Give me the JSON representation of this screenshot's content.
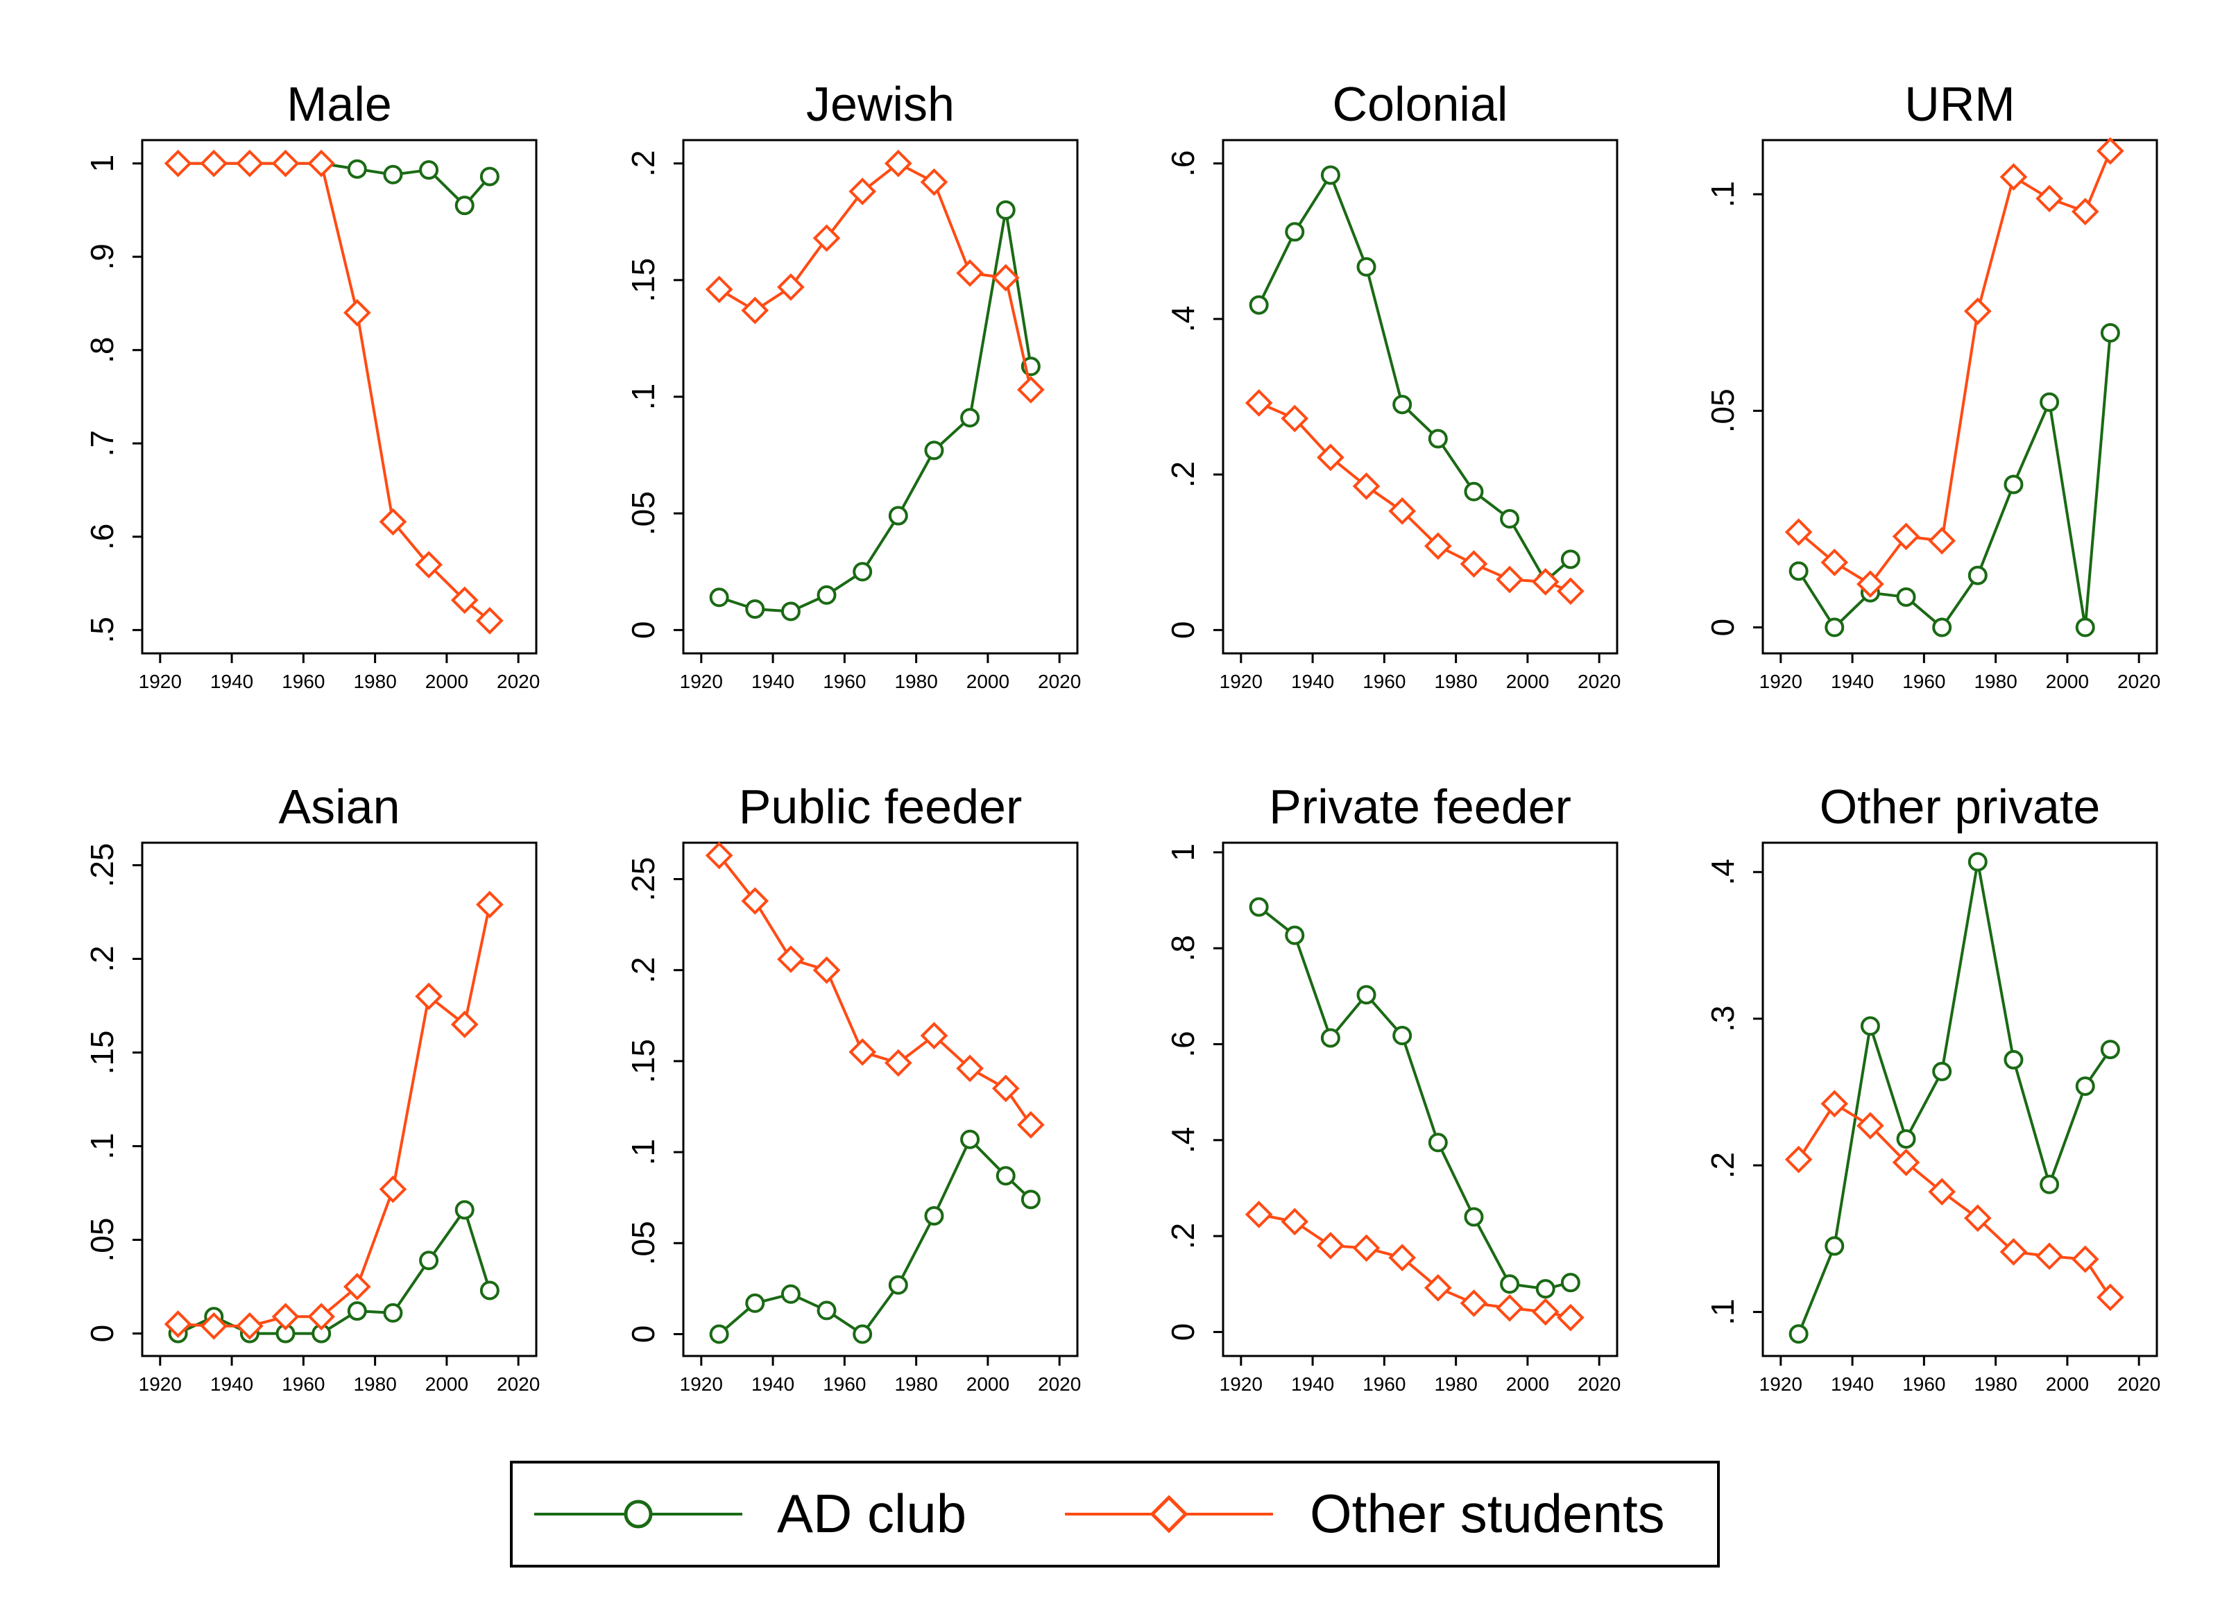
{
  "colors": {
    "ad_club": "#1a6a14",
    "other_students": "#ff4b14"
  },
  "legend": {
    "ad_label": "AD club",
    "other_label": "Other students"
  },
  "chart_data": [
    {
      "type": "line",
      "title": "Male",
      "x": [
        1925,
        1935,
        1945,
        1955,
        1965,
        1975,
        1985,
        1995,
        2005,
        2012
      ],
      "xlim": [
        1915,
        2025
      ],
      "xticks": [
        "1920",
        "1940",
        "1960",
        "1980",
        "2000",
        "2020"
      ],
      "ylim": [
        0.475,
        1.025
      ],
      "yticks": [
        {
          "v": 0.5,
          "label": ".5"
        },
        {
          "v": 0.6,
          "label": ".6"
        },
        {
          "v": 0.7,
          "label": ".7"
        },
        {
          "v": 0.8,
          "label": ".8"
        },
        {
          "v": 0.9,
          "label": ".9"
        },
        {
          "v": 1,
          "label": "1"
        }
      ],
      "series": [
        {
          "name": "AD club",
          "values": [
            1,
            1,
            1,
            1,
            1,
            0.994,
            0.988,
            0.993,
            0.955,
            0.986
          ]
        },
        {
          "name": "Other students",
          "values": [
            1,
            1,
            1,
            1,
            1,
            0.84,
            0.616,
            0.57,
            0.532,
            0.51
          ]
        }
      ]
    },
    {
      "type": "line",
      "title": "Jewish",
      "x": [
        1925,
        1935,
        1945,
        1955,
        1965,
        1975,
        1985,
        1995,
        2005,
        2012
      ],
      "xlim": [
        1915,
        2025
      ],
      "xticks": [
        "1920",
        "1940",
        "1960",
        "1980",
        "2000",
        "2020"
      ],
      "ylim": [
        -0.01,
        0.21
      ],
      "yticks": [
        {
          "v": 0,
          "label": "0"
        },
        {
          "v": 0.05,
          "label": ".05"
        },
        {
          "v": 0.1,
          "label": ".1"
        },
        {
          "v": 0.15,
          "label": ".15"
        },
        {
          "v": 0.2,
          "label": ".2"
        }
      ],
      "series": [
        {
          "name": "AD club",
          "values": [
            0.014,
            0.009,
            0.008,
            0.015,
            0.025,
            0.049,
            0.077,
            0.091,
            0.18,
            0.113
          ]
        },
        {
          "name": "Other students",
          "values": [
            0.146,
            0.137,
            0.147,
            0.168,
            0.188,
            0.2,
            0.192,
            0.153,
            0.151,
            0.103
          ]
        }
      ]
    },
    {
      "type": "line",
      "title": "Colonial",
      "x": [
        1925,
        1935,
        1945,
        1955,
        1965,
        1975,
        1985,
        1995,
        2005,
        2012
      ],
      "xlim": [
        1915,
        2025
      ],
      "xticks": [
        "1920",
        "1940",
        "1960",
        "1980",
        "2000",
        "2020"
      ],
      "ylim": [
        -0.03,
        0.63
      ],
      "yticks": [
        {
          "v": 0,
          "label": "0"
        },
        {
          "v": 0.2,
          "label": ".2"
        },
        {
          "v": 0.4,
          "label": ".4"
        },
        {
          "v": 0.6,
          "label": ".6"
        }
      ],
      "series": [
        {
          "name": "AD club",
          "values": [
            0.418,
            0.512,
            0.585,
            0.467,
            0.29,
            0.246,
            0.178,
            0.143,
            0.063,
            0.091
          ]
        },
        {
          "name": "Other students",
          "values": [
            0.292,
            0.272,
            0.222,
            0.185,
            0.153,
            0.108,
            0.085,
            0.065,
            0.062,
            0.05
          ]
        }
      ]
    },
    {
      "type": "line",
      "title": "URM",
      "x": [
        1925,
        1935,
        1945,
        1955,
        1965,
        1975,
        1985,
        1995,
        2005,
        2012
      ],
      "xlim": [
        1915,
        2025
      ],
      "xticks": [
        "1920",
        "1940",
        "1960",
        "1980",
        "2000",
        "2020"
      ],
      "ylim": [
        -0.006,
        0.1125
      ],
      "yticks": [
        {
          "v": 0,
          "label": "0"
        },
        {
          "v": 0.05,
          "label": ".05"
        },
        {
          "v": 0.1,
          "label": ".1"
        }
      ],
      "series": [
        {
          "name": "AD club",
          "values": [
            0.013,
            0,
            0.008,
            0.007,
            0,
            0.012,
            0.033,
            0.052,
            0,
            0.068
          ]
        },
        {
          "name": "Other students",
          "values": [
            0.022,
            0.015,
            0.01,
            0.021,
            0.02,
            0.073,
            0.104,
            0.099,
            0.096,
            0.11
          ]
        }
      ]
    },
    {
      "type": "line",
      "title": "Asian",
      "x": [
        1925,
        1935,
        1945,
        1955,
        1965,
        1975,
        1985,
        1995,
        2005,
        2012
      ],
      "xlim": [
        1915,
        2025
      ],
      "xticks": [
        "1920",
        "1940",
        "1960",
        "1980",
        "2000",
        "2020"
      ],
      "ylim": [
        -0.012,
        0.262
      ],
      "yticks": [
        {
          "v": 0,
          "label": "0"
        },
        {
          "v": 0.05,
          "label": ".05"
        },
        {
          "v": 0.1,
          "label": ".1"
        },
        {
          "v": 0.15,
          "label": ".15"
        },
        {
          "v": 0.2,
          "label": ".2"
        },
        {
          "v": 0.25,
          "label": ".25"
        }
      ],
      "series": [
        {
          "name": "AD club",
          "values": [
            0,
            0.009,
            0,
            0,
            0,
            0.012,
            0.011,
            0.039,
            0.066,
            0.023
          ]
        },
        {
          "name": "Other students",
          "values": [
            0.005,
            0.004,
            0.004,
            0.009,
            0.009,
            0.025,
            0.077,
            0.18,
            0.165,
            0.229
          ]
        }
      ]
    },
    {
      "type": "line",
      "title": "Public feeder",
      "x": [
        1925,
        1935,
        1945,
        1955,
        1965,
        1975,
        1985,
        1995,
        2005,
        2012
      ],
      "xlim": [
        1915,
        2025
      ],
      "xticks": [
        "1920",
        "1940",
        "1960",
        "1980",
        "2000",
        "2020"
      ],
      "ylim": [
        -0.012,
        0.27
      ],
      "yticks": [
        {
          "v": 0,
          "label": "0"
        },
        {
          "v": 0.05,
          "label": ".05"
        },
        {
          "v": 0.1,
          "label": ".1"
        },
        {
          "v": 0.15,
          "label": ".15"
        },
        {
          "v": 0.2,
          "label": ".2"
        },
        {
          "v": 0.25,
          "label": ".25"
        }
      ],
      "series": [
        {
          "name": "AD club",
          "values": [
            0,
            0.017,
            0.022,
            0.013,
            0,
            0.027,
            0.065,
            0.107,
            0.087,
            0.074
          ]
        },
        {
          "name": "Other students",
          "values": [
            0.263,
            0.238,
            0.206,
            0.2,
            0.155,
            0.149,
            0.164,
            0.146,
            0.135,
            0.115
          ]
        }
      ]
    },
    {
      "type": "line",
      "title": "Private feeder",
      "x": [
        1925,
        1935,
        1945,
        1955,
        1965,
        1975,
        1985,
        1995,
        2005,
        2012
      ],
      "xlim": [
        1915,
        2025
      ],
      "xticks": [
        "1920",
        "1940",
        "1960",
        "1980",
        "2000",
        "2020"
      ],
      "ylim": [
        -0.05,
        1.02
      ],
      "yticks": [
        {
          "v": 0,
          "label": "0"
        },
        {
          "v": 0.2,
          "label": ".2"
        },
        {
          "v": 0.4,
          "label": ".4"
        },
        {
          "v": 0.6,
          "label": ".6"
        },
        {
          "v": 0.8,
          "label": ".8"
        },
        {
          "v": 1,
          "label": "1"
        }
      ],
      "series": [
        {
          "name": "AD club",
          "values": [
            0.886,
            0.827,
            0.613,
            0.703,
            0.618,
            0.395,
            0.24,
            0.1,
            0.09,
            0.103
          ]
        },
        {
          "name": "Other students",
          "values": [
            0.245,
            0.23,
            0.18,
            0.175,
            0.155,
            0.092,
            0.06,
            0.05,
            0.042,
            0.03
          ]
        }
      ]
    },
    {
      "type": "line",
      "title": "Other private",
      "x": [
        1925,
        1935,
        1945,
        1955,
        1965,
        1975,
        1985,
        1995,
        2005,
        2012
      ],
      "xlim": [
        1915,
        2025
      ],
      "xticks": [
        "1920",
        "1940",
        "1960",
        "1980",
        "2000",
        "2020"
      ],
      "ylim": [
        0.07,
        0.42
      ],
      "yticks": [
        {
          "v": 0.1,
          "label": ".1"
        },
        {
          "v": 0.2,
          "label": ".2"
        },
        {
          "v": 0.3,
          "label": ".3"
        },
        {
          "v": 0.4,
          "label": ".4"
        }
      ],
      "series": [
        {
          "name": "AD club",
          "values": [
            0.085,
            0.145,
            0.295,
            0.218,
            0.264,
            0.407,
            0.272,
            0.187,
            0.254,
            0.279
          ]
        },
        {
          "name": "Other students",
          "values": [
            0.204,
            0.242,
            0.227,
            0.202,
            0.182,
            0.164,
            0.141,
            0.138,
            0.136,
            0.11
          ]
        }
      ]
    }
  ]
}
